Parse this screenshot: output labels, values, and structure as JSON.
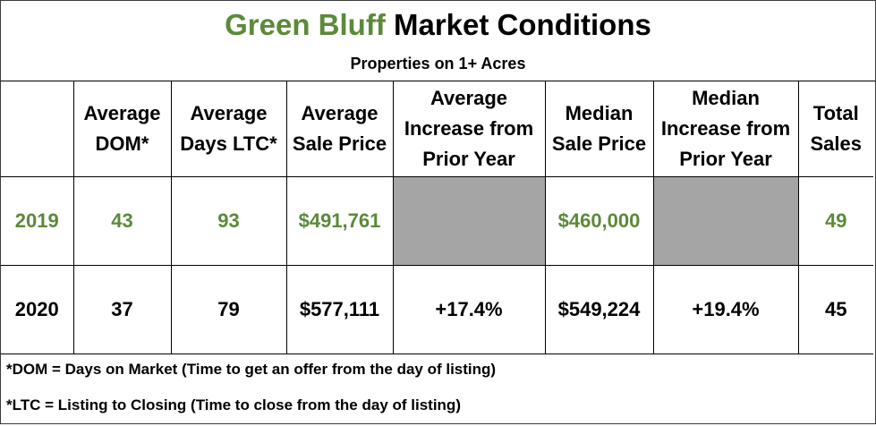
{
  "title": {
    "accent_text": "Green Bluff",
    "rest_text": " Market Conditions",
    "subtitle": "Properties on 1+ Acres"
  },
  "colors": {
    "accent": "#5b8a3a",
    "shaded": "#a5a5a5"
  },
  "table": {
    "headers": [
      "",
      "Average DOM*",
      "Average Days LTC*",
      "Average Sale Price",
      "Average Increase from Prior Year",
      "Median Sale Price",
      "Median Increase from Prior Year",
      "Total Sales"
    ],
    "rows": [
      {
        "year": "2019",
        "dom": "43",
        "ltc": "93",
        "avg_price": "$491,761",
        "avg_increase": "",
        "median_price": "$460,000",
        "median_increase": "",
        "total": "49"
      },
      {
        "year": "2020",
        "dom": "37",
        "ltc": "79",
        "avg_price": "$577,111",
        "avg_increase": "+17.4%",
        "median_price": "$549,224",
        "median_increase": "+19.4%",
        "total": "45"
      }
    ]
  },
  "notes": [
    "*DOM = Days on Market (Time to get an offer from the day of listing)",
    "*LTC = Listing to Closing (Time to close from the day of listing)"
  ]
}
